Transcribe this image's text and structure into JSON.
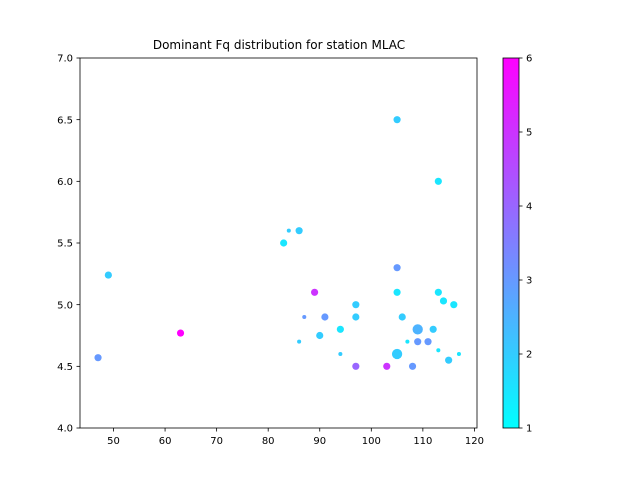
{
  "chart_data": {
    "type": "scatter",
    "title": "Dominant Fq distribution for station MLAC",
    "xlabel": "",
    "ylabel": "",
    "xlim": [
      43.5,
      120.5
    ],
    "ylim": [
      4.0,
      7.0
    ],
    "x_ticks": [
      50,
      60,
      70,
      80,
      90,
      100,
      110,
      120
    ],
    "y_ticks": [
      4.0,
      4.5,
      5.0,
      5.5,
      6.0,
      6.5,
      7.0
    ],
    "grid": false,
    "colorbar": {
      "colormap": "cool",
      "range": [
        1,
        6
      ],
      "ticks": [
        1,
        2,
        3,
        4,
        5,
        6
      ]
    },
    "points": [
      {
        "x": 47,
        "y": 4.57,
        "c": 3.0,
        "s": 1.3
      },
      {
        "x": 49,
        "y": 5.24,
        "c": 2.0,
        "s": 1.3
      },
      {
        "x": 63,
        "y": 4.77,
        "c": 6.0,
        "s": 1.3
      },
      {
        "x": 83,
        "y": 5.5,
        "c": 1.5,
        "s": 1.3
      },
      {
        "x": 84,
        "y": 5.6,
        "c": 2.0,
        "s": 0.7
      },
      {
        "x": 86,
        "y": 5.6,
        "c": 2.0,
        "s": 1.3
      },
      {
        "x": 86,
        "y": 4.7,
        "c": 2.0,
        "s": 0.7
      },
      {
        "x": 87,
        "y": 4.9,
        "c": 3.0,
        "s": 0.7
      },
      {
        "x": 89,
        "y": 5.1,
        "c": 5.0,
        "s": 1.3
      },
      {
        "x": 90,
        "y": 4.75,
        "c": 2.0,
        "s": 1.3
      },
      {
        "x": 91,
        "y": 4.9,
        "c": 3.0,
        "s": 1.3
      },
      {
        "x": 94,
        "y": 4.8,
        "c": 1.5,
        "s": 1.3
      },
      {
        "x": 94,
        "y": 4.6,
        "c": 2.0,
        "s": 0.7
      },
      {
        "x": 97,
        "y": 5.0,
        "c": 2.0,
        "s": 1.3
      },
      {
        "x": 97,
        "y": 4.9,
        "c": 2.0,
        "s": 1.3
      },
      {
        "x": 97,
        "y": 4.5,
        "c": 4.0,
        "s": 1.3
      },
      {
        "x": 103,
        "y": 4.5,
        "c": 5.0,
        "s": 1.3
      },
      {
        "x": 105,
        "y": 6.5,
        "c": 2.0,
        "s": 1.3
      },
      {
        "x": 105,
        "y": 5.3,
        "c": 3.0,
        "s": 1.3
      },
      {
        "x": 105,
        "y": 5.1,
        "c": 1.5,
        "s": 1.3
      },
      {
        "x": 105,
        "y": 4.6,
        "c": 2.0,
        "s": 1.9
      },
      {
        "x": 106,
        "y": 4.9,
        "c": 2.0,
        "s": 1.3
      },
      {
        "x": 107,
        "y": 4.7,
        "c": 1.5,
        "s": 0.7
      },
      {
        "x": 108,
        "y": 4.5,
        "c": 3.0,
        "s": 1.3
      },
      {
        "x": 109,
        "y": 4.8,
        "c": 2.5,
        "s": 1.9
      },
      {
        "x": 109,
        "y": 4.7,
        "c": 3.0,
        "s": 1.3
      },
      {
        "x": 111,
        "y": 4.7,
        "c": 3.0,
        "s": 1.3
      },
      {
        "x": 112,
        "y": 4.8,
        "c": 2.0,
        "s": 1.3
      },
      {
        "x": 113,
        "y": 6.0,
        "c": 1.5,
        "s": 1.3
      },
      {
        "x": 113,
        "y": 5.1,
        "c": 1.5,
        "s": 1.3
      },
      {
        "x": 113,
        "y": 4.63,
        "c": 1.5,
        "s": 0.7
      },
      {
        "x": 114,
        "y": 5.03,
        "c": 1.5,
        "s": 1.3
      },
      {
        "x": 115,
        "y": 4.55,
        "c": 2.0,
        "s": 1.3
      },
      {
        "x": 116,
        "y": 5.0,
        "c": 1.5,
        "s": 1.3
      },
      {
        "x": 117,
        "y": 4.6,
        "c": 1.5,
        "s": 0.7
      }
    ]
  }
}
